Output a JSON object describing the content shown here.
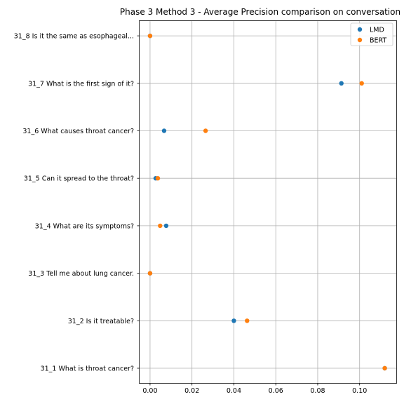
{
  "chart_data": {
    "type": "scatter",
    "title": "Phase 3 Method 3 - Average Precision comparison on conversation",
    "xlabel": "",
    "ylabel": "",
    "xlim": [
      -0.005,
      0.1175
    ],
    "x_ticks": [
      "0.00",
      "0.02",
      "0.04",
      "0.06",
      "0.08",
      "0.10"
    ],
    "x_tick_values": [
      0.0,
      0.02,
      0.04,
      0.06,
      0.08,
      0.1
    ],
    "categories": [
      "31_1 What is throat cancer?",
      "31_2 Is it treatable?",
      "31_3 Tell me about lung cancer.",
      "31_4 What are its symptoms?",
      "31_5 Can it spread to the throat?",
      "31_6 What causes throat cancer?",
      "31_7 What is the first sign of it?",
      "31_8 Is it the same as esophageal..."
    ],
    "series": [
      {
        "name": "LMD",
        "color": "#1f77b4",
        "values": [
          0.112,
          0.04,
          0.0,
          0.0077,
          0.0027,
          0.0067,
          0.0913,
          0.0
        ]
      },
      {
        "name": "BERT",
        "color": "#ff7f0e",
        "values": [
          0.112,
          0.0463,
          0.0,
          0.0048,
          0.0037,
          0.0265,
          0.101,
          0.0
        ]
      }
    ],
    "grid": true,
    "legend_position": "top-right"
  }
}
